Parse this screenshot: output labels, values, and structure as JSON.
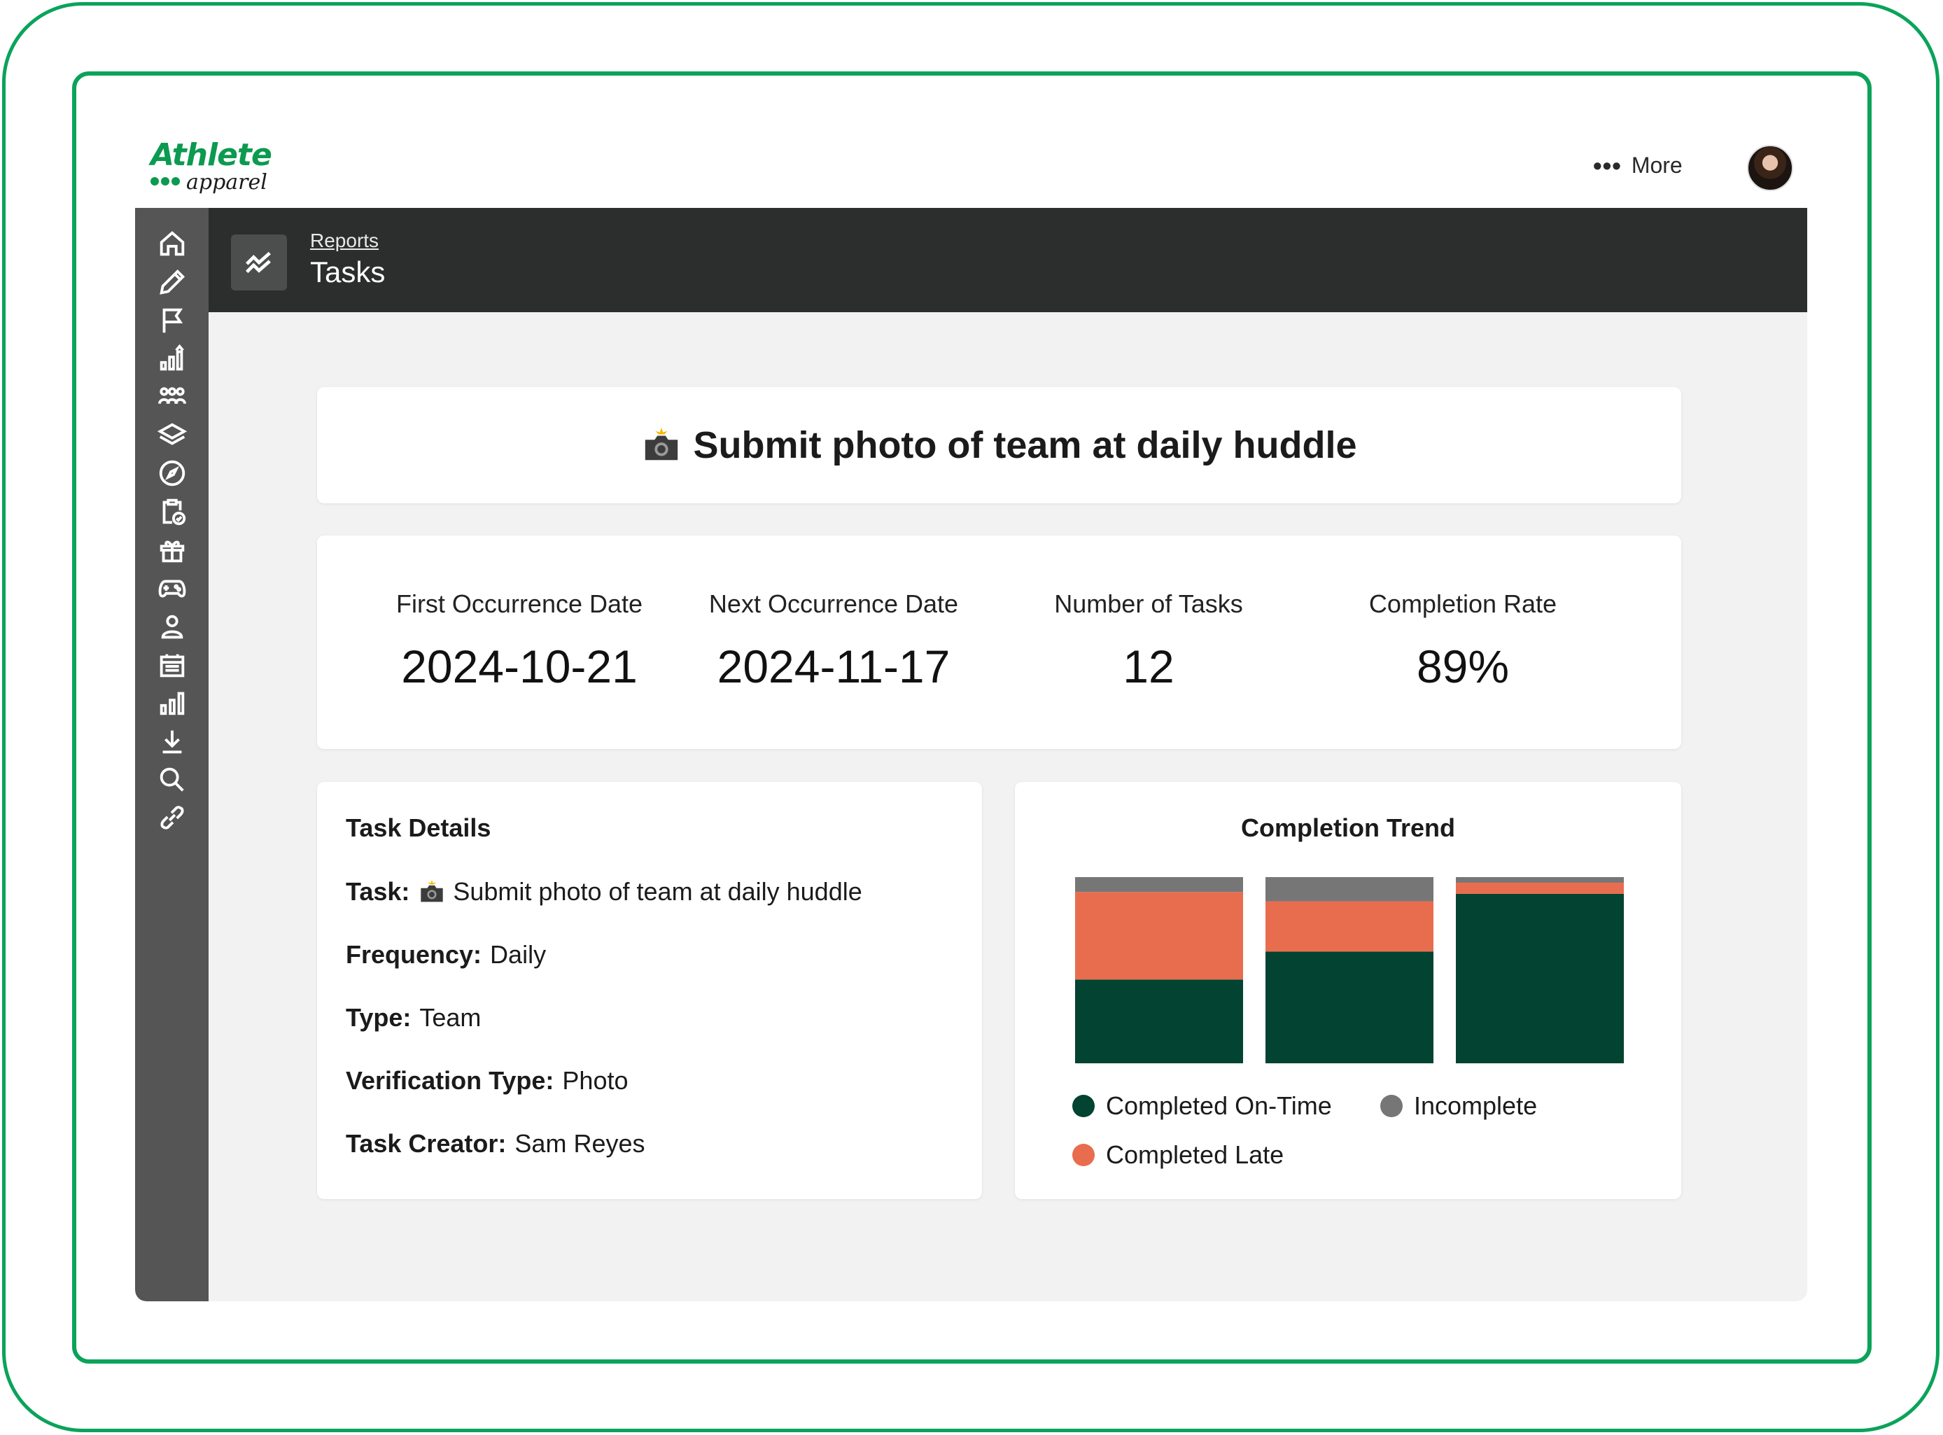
{
  "brand": {
    "name": "Athlete",
    "sub": "apparel",
    "color": "#0b9a4f"
  },
  "topbar": {
    "more_label": "More",
    "more_icon": "ellipsis-icon",
    "avatar": "user-avatar"
  },
  "sidebar": {
    "items": [
      {
        "icon": "home-icon"
      },
      {
        "icon": "pencil-icon"
      },
      {
        "icon": "flag-icon"
      },
      {
        "icon": "bar-chart-up-icon"
      },
      {
        "icon": "people-icon"
      },
      {
        "icon": "layers-icon"
      },
      {
        "icon": "compass-icon"
      },
      {
        "icon": "clipboard-check-icon"
      },
      {
        "icon": "gift-icon"
      },
      {
        "icon": "gamepad-icon"
      },
      {
        "icon": "user-icon"
      },
      {
        "icon": "calendar-icon"
      },
      {
        "icon": "bar-chart-icon"
      },
      {
        "icon": "download-icon"
      },
      {
        "icon": "search-icon"
      },
      {
        "icon": "link-icon"
      }
    ]
  },
  "header": {
    "breadcrumb": "Reports",
    "title": "Tasks",
    "icon": "trend-icon"
  },
  "task": {
    "title": "Submit photo of team at daily huddle",
    "icon": "camera-flash-icon"
  },
  "stats": [
    {
      "label": "First Occurrence Date",
      "value": "2024-10-21"
    },
    {
      "label": "Next Occurrence Date",
      "value": "2024-11-17"
    },
    {
      "label": "Number of Tasks",
      "value": "12"
    },
    {
      "label": "Completion Rate",
      "value": "89%"
    }
  ],
  "details": {
    "heading": "Task Details",
    "rows": [
      {
        "key": "Task:",
        "value": "Submit photo of team at daily huddle"
      },
      {
        "key": "Frequency:",
        "value": "Daily"
      },
      {
        "key": "Type:",
        "value": "Team"
      },
      {
        "key": "Verification Type:",
        "value": "Photo"
      },
      {
        "key": "Task Creator:",
        "value": "Sam Reyes"
      }
    ]
  },
  "chart_data": {
    "type": "bar",
    "stacked": true,
    "title": "Completion Trend",
    "categories": [
      "",
      "",
      ""
    ],
    "series": [
      {
        "name": "Completed On-Time",
        "color": "#034331",
        "values": [
          45,
          60,
          91
        ]
      },
      {
        "name": "Completed Late",
        "color": "#e86d4e",
        "values": [
          47,
          27,
          6
        ]
      },
      {
        "name": "Incomplete",
        "color": "#767676",
        "values": [
          8,
          13,
          3
        ]
      }
    ],
    "ylim": [
      0,
      100
    ],
    "legend": "bottom"
  }
}
